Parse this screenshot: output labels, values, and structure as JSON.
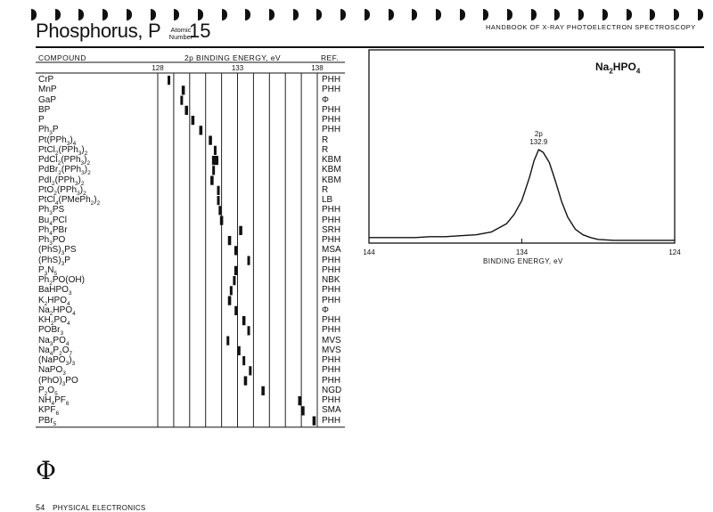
{
  "header": {
    "element_title": "Phosphorus, P",
    "atomic_label_line1": "Atomic",
    "atomic_label_line2": "Number",
    "atomic_number": "15",
    "handbook_title": "HANDBOOK OF X-RAY PHOTOELECTRON SPECTROSCOPY"
  },
  "table": {
    "compound_header": "COMPOUND",
    "energy_header": "2p BINDING ENERGY, eV",
    "ref_header": "REF."
  },
  "chart_data": [
    {
      "type": "range",
      "title": "2p BINDING ENERGY, eV",
      "xlim": [
        128,
        138
      ],
      "ticks": [
        "128",
        "133",
        "138"
      ],
      "gridlines": [
        128,
        129,
        130,
        131,
        132,
        133,
        134,
        135,
        136,
        137,
        138
      ],
      "rows": [
        {
          "compound": "CrP",
          "ref": "PHH",
          "low": 128.7,
          "high": 128.7
        },
        {
          "compound": "MnP",
          "ref": "PHH",
          "low": 129.5,
          "high": 129.7
        },
        {
          "compound": "GaP",
          "ref": "Φ",
          "low": 129.5,
          "high": 129.5
        },
        {
          "compound": "BP",
          "ref": "PHH",
          "low": 129.7,
          "high": 129.9
        },
        {
          "compound": "P",
          "ref": "PHH",
          "low": 130.1,
          "high": 130.3
        },
        {
          "compound": "Ph₃P",
          "ref": "PHH",
          "low": 130.6,
          "high": 130.8
        },
        {
          "compound": "Pt(PPh₃)₄",
          "ref": "R",
          "low": 131.2,
          "high": 131.4
        },
        {
          "compound": "PtCl₂(PPh₃)₂",
          "ref": "R",
          "low": 131.6,
          "high": 131.6
        },
        {
          "compound": "PdCl₂(PPh₃)₂",
          "ref": "KBM",
          "low": 131.4,
          "high": 131.8
        },
        {
          "compound": "PdBr₂(PPh₃)₂",
          "ref": "KBM",
          "low": 131.5,
          "high": 131.6
        },
        {
          "compound": "PdI₂(PPh₃)₂",
          "ref": "KBM",
          "low": 131.3,
          "high": 131.5
        },
        {
          "compound": "PtO₂(PPh₃)₂",
          "ref": "R",
          "low": 131.8,
          "high": 131.8
        },
        {
          "compound": "PtCl₄(PMePh₂)₂",
          "ref": "LB",
          "low": 131.8,
          "high": 131.8
        },
        {
          "compound": "Ph₃PS",
          "ref": "PHH",
          "low": 131.9,
          "high": 132.0
        },
        {
          "compound": "Bu₄PCl",
          "ref": "PHH",
          "low": 131.9,
          "high": 132.1
        },
        {
          "compound": "Ph₄PBr",
          "ref": "SRH",
          "low": 133.1,
          "high": 133.3
        },
        {
          "compound": "Ph₃PO",
          "ref": "PHH",
          "low": 132.4,
          "high": 132.6
        },
        {
          "compound": "(PhS)₃PS",
          "ref": "MSA",
          "low": 132.8,
          "high": 133.0
        },
        {
          "compound": "(PhS)₃P",
          "ref": "PHH",
          "low": 133.7,
          "high": 133.8
        },
        {
          "compound": "P₃N₅",
          "ref": "PHH",
          "low": 132.8,
          "high": 133.0
        },
        {
          "compound": "Ph₂PO(OH)",
          "ref": "NBK",
          "low": 132.8,
          "high": 132.9
        },
        {
          "compound": "BaHPO₃",
          "ref": "PHH",
          "low": 132.6,
          "high": 132.7
        },
        {
          "compound": "K₂HPO₄",
          "ref": "PHH",
          "low": 132.4,
          "high": 132.6
        },
        {
          "compound": "Na₂HPO₄",
          "ref": "Φ",
          "low": 132.9,
          "high": 132.9
        },
        {
          "compound": "KH₂PO₄",
          "ref": "PHH",
          "low": 133.3,
          "high": 133.5
        },
        {
          "compound": "POBr₃",
          "ref": "PHH",
          "low": 133.7,
          "high": 133.8
        },
        {
          "compound": "Na₃PO₄",
          "ref": "MVS",
          "low": 132.4,
          "high": 132.5
        },
        {
          "compound": "Na₄P₂O₇",
          "ref": "MVS",
          "low": 133.1,
          "high": 133.2
        },
        {
          "compound": "(NaPO₃)₃",
          "ref": "PHH",
          "low": 133.4,
          "high": 133.5
        },
        {
          "compound": "NaPO₃",
          "ref": "PHH",
          "low": 133.8,
          "high": 133.9
        },
        {
          "compound": "(PhO)₃PO",
          "ref": "PHH",
          "low": 133.4,
          "high": 133.6
        },
        {
          "compound": "P₂O₅",
          "ref": "NGD",
          "low": 134.5,
          "high": 134.7
        },
        {
          "compound": "NH₄PF₆",
          "ref": "PHH",
          "low": 136.8,
          "high": 137.0
        },
        {
          "compound": "KPF₆",
          "ref": "SMA",
          "low": 137.0,
          "high": 137.2
        },
        {
          "compound": "PBr₅",
          "ref": "PHH",
          "low": 137.7,
          "high": 137.9
        }
      ]
    },
    {
      "type": "line",
      "title": "Na₂HPO₄",
      "xlabel": "BINDING ENERGY, eV",
      "xlim": [
        144,
        124
      ],
      "x_reversed": true,
      "xticks": [
        "144",
        "134",
        "124"
      ],
      "peak": {
        "label": "2p",
        "value": "132.9",
        "x": 132.9
      },
      "x": [
        144,
        143,
        142,
        141,
        140,
        139,
        138,
        137,
        136,
        135,
        134.5,
        134,
        133.5,
        133.2,
        132.9,
        132.6,
        132.2,
        131.8,
        131.4,
        131,
        130.5,
        130,
        129.5,
        129,
        128,
        127,
        126,
        125,
        124
      ],
      "y": [
        0.05,
        0.05,
        0.05,
        0.05,
        0.06,
        0.06,
        0.07,
        0.08,
        0.11,
        0.2,
        0.3,
        0.45,
        0.7,
        0.88,
        1.0,
        0.97,
        0.86,
        0.66,
        0.44,
        0.27,
        0.14,
        0.08,
        0.05,
        0.03,
        0.02,
        0.02,
        0.02,
        0.02,
        0.02
      ]
    }
  ],
  "logo_glyph": "Φ",
  "footer": {
    "page": "54",
    "publisher": "PHYSICAL ELECTRONICS"
  }
}
